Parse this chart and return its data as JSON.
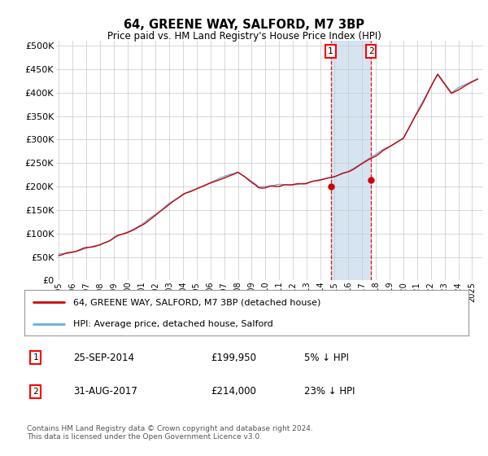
{
  "title": "64, GREENE WAY, SALFORD, M7 3BP",
  "subtitle": "Price paid vs. HM Land Registry's House Price Index (HPI)",
  "ylim": [
    0,
    500000
  ],
  "xlim_start": 1994.8,
  "xlim_end": 2025.8,
  "transaction1": {
    "date_num": 2014.73,
    "price": 199950,
    "label": "1",
    "date_str": "25-SEP-2014"
  },
  "transaction2": {
    "date_num": 2017.66,
    "price": 214000,
    "label": "2",
    "date_str": "31-AUG-2017"
  },
  "hpi_color": "#6baed6",
  "price_color": "#cc0000",
  "vline_color": "#dd0000",
  "shade_color": "#cfe0f0",
  "grid_color": "#c8c8c8",
  "background_color": "#ffffff",
  "legend_text1": "64, GREENE WAY, SALFORD, M7 3BP (detached house)",
  "legend_text2": "HPI: Average price, detached house, Salford",
  "footer": "Contains HM Land Registry data © Crown copyright and database right 2024.\nThis data is licensed under the Open Government Licence v3.0.",
  "table_rows": [
    {
      "label": "1",
      "date": "25-SEP-2014",
      "price": "£199,950",
      "pct": "5% ↓ HPI"
    },
    {
      "label": "2",
      "date": "31-AUG-2017",
      "price": "£214,000",
      "pct": "23% ↓ HPI"
    }
  ]
}
